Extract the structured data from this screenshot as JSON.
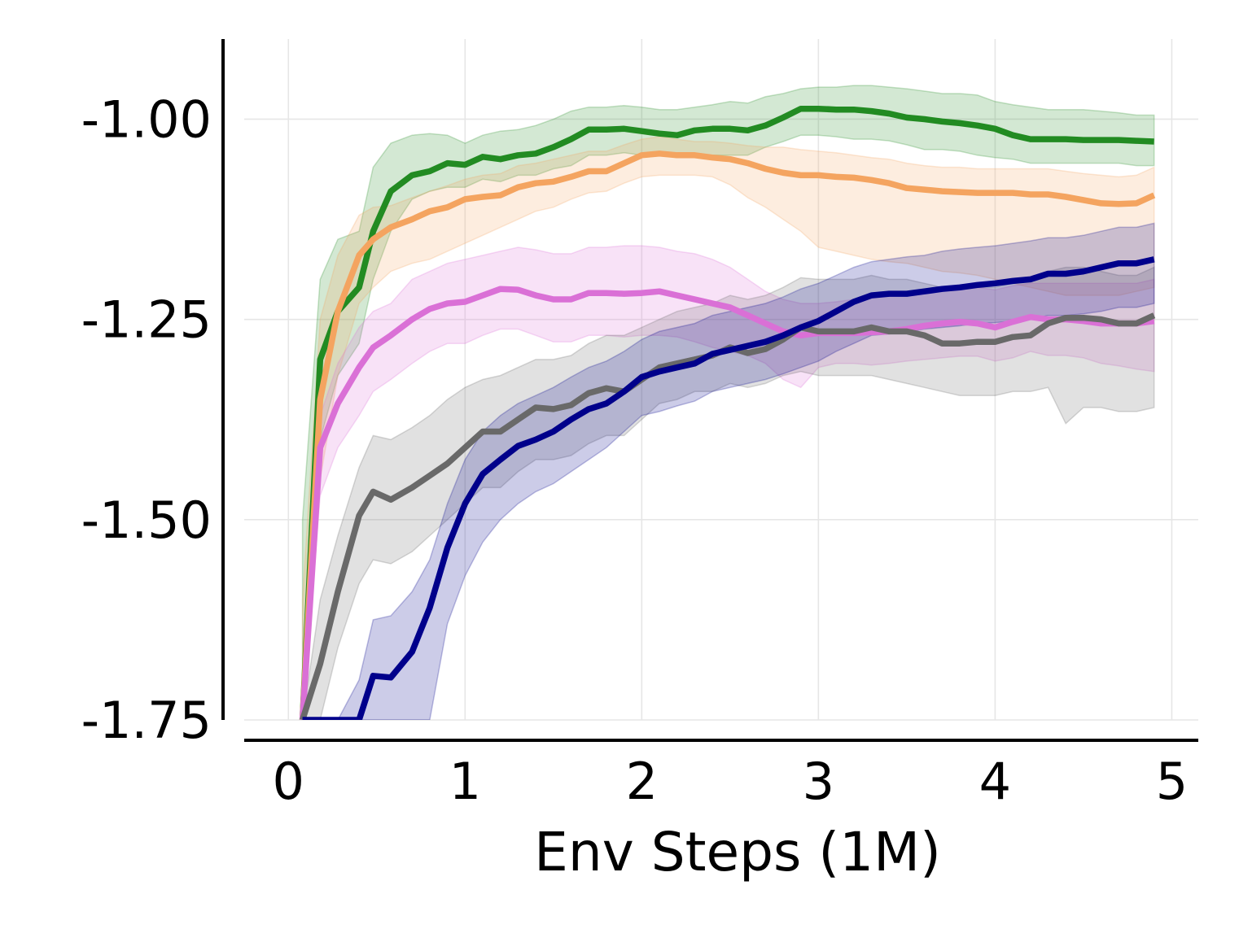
{
  "chart_data": {
    "type": "line",
    "title": "",
    "xlabel": "Env Steps (1M)",
    "ylabel": "",
    "xlim": [
      -0.25,
      5.15
    ],
    "ylim": [
      -1.75,
      -0.9
    ],
    "xticks": [
      0,
      1,
      2,
      3,
      4,
      5
    ],
    "xtick_labels": [
      "0",
      "1",
      "2",
      "3",
      "4",
      "5"
    ],
    "yticks": [
      -1.75,
      -1.5,
      -1.25,
      -1.0
    ],
    "ytick_labels": [
      "-1.75",
      "-1.50",
      "-1.25",
      "-1.00"
    ],
    "grid": true,
    "legend": "none",
    "x": [
      0.08,
      0.18,
      0.28,
      0.4,
      0.48,
      0.58,
      0.7,
      0.8,
      0.9,
      1.0,
      1.1,
      1.2,
      1.3,
      1.4,
      1.5,
      1.6,
      1.7,
      1.8,
      1.9,
      2.0,
      2.1,
      2.2,
      2.3,
      2.4,
      2.5,
      2.6,
      2.7,
      2.8,
      2.9,
      3.0,
      3.1,
      3.2,
      3.3,
      3.4,
      3.5,
      3.6,
      3.7,
      3.8,
      3.9,
      4.0,
      4.1,
      4.2,
      4.3,
      4.4,
      4.5,
      4.6,
      4.7,
      4.8,
      4.9
    ],
    "series": [
      {
        "name": "green",
        "color": "#228b22",
        "values": [
          -1.75,
          -1.3,
          -1.24,
          -1.21,
          -1.14,
          -1.09,
          -1.07,
          -1.065,
          -1.055,
          -1.057,
          -1.047,
          -1.05,
          -1.045,
          -1.043,
          -1.035,
          -1.025,
          -1.013,
          -1.013,
          -1.012,
          -1.015,
          -1.018,
          -1.02,
          -1.014,
          -1.012,
          -1.012,
          -1.014,
          -1.008,
          -0.998,
          -0.987,
          -0.987,
          -0.988,
          -0.988,
          -0.99,
          -0.993,
          -0.998,
          -1.0,
          -1.003,
          -1.005,
          -1.008,
          -1.012,
          -1.02,
          -1.025,
          -1.025,
          -1.025,
          -1.026,
          -1.026,
          -1.026,
          -1.027,
          -1.028
        ],
        "upper": [
          -1.5,
          -1.2,
          -1.15,
          -1.14,
          -1.06,
          -1.03,
          -1.02,
          -1.018,
          -1.02,
          -1.03,
          -1.02,
          -1.015,
          -1.013,
          -1.008,
          -1.0,
          -0.99,
          -0.985,
          -0.985,
          -0.983,
          -0.985,
          -0.988,
          -0.988,
          -0.985,
          -0.982,
          -0.978,
          -0.98,
          -0.972,
          -0.968,
          -0.962,
          -0.96,
          -0.96,
          -0.958,
          -0.958,
          -0.96,
          -0.962,
          -0.965,
          -0.968,
          -0.968,
          -0.97,
          -0.978,
          -0.982,
          -0.985,
          -0.988,
          -0.988,
          -0.988,
          -0.99,
          -0.992,
          -0.995,
          -0.995
        ],
        "lower": [
          -1.75,
          -1.4,
          -1.32,
          -1.28,
          -1.2,
          -1.14,
          -1.1,
          -1.09,
          -1.085,
          -1.085,
          -1.075,
          -1.078,
          -1.07,
          -1.07,
          -1.062,
          -1.058,
          -1.045,
          -1.045,
          -1.042,
          -1.045,
          -1.045,
          -1.048,
          -1.045,
          -1.045,
          -1.045,
          -1.045,
          -1.035,
          -1.028,
          -1.02,
          -1.02,
          -1.022,
          -1.025,
          -1.025,
          -1.027,
          -1.032,
          -1.038,
          -1.038,
          -1.04,
          -1.045,
          -1.048,
          -1.05,
          -1.055,
          -1.055,
          -1.055,
          -1.055,
          -1.055,
          -1.055,
          -1.058,
          -1.058
        ]
      },
      {
        "name": "orange",
        "color": "#f4a460",
        "values": [
          -1.75,
          -1.35,
          -1.24,
          -1.17,
          -1.15,
          -1.135,
          -1.125,
          -1.115,
          -1.11,
          -1.1,
          -1.097,
          -1.095,
          -1.085,
          -1.08,
          -1.078,
          -1.072,
          -1.065,
          -1.065,
          -1.055,
          -1.045,
          -1.043,
          -1.045,
          -1.045,
          -1.048,
          -1.05,
          -1.055,
          -1.062,
          -1.067,
          -1.07,
          -1.07,
          -1.072,
          -1.073,
          -1.076,
          -1.08,
          -1.086,
          -1.088,
          -1.09,
          -1.091,
          -1.092,
          -1.092,
          -1.092,
          -1.094,
          -1.094,
          -1.097,
          -1.101,
          -1.105,
          -1.106,
          -1.105,
          -1.095
        ],
        "upper": [
          -1.6,
          -1.25,
          -1.17,
          -1.12,
          -1.11,
          -1.108,
          -1.098,
          -1.09,
          -1.083,
          -1.075,
          -1.07,
          -1.068,
          -1.058,
          -1.055,
          -1.05,
          -1.045,
          -1.04,
          -1.04,
          -1.032,
          -1.025,
          -1.022,
          -1.025,
          -1.028,
          -1.028,
          -1.03,
          -1.033,
          -1.035,
          -1.035,
          -1.038,
          -1.04,
          -1.042,
          -1.045,
          -1.048,
          -1.05,
          -1.055,
          -1.058,
          -1.06,
          -1.06,
          -1.062,
          -1.062,
          -1.062,
          -1.062,
          -1.062,
          -1.065,
          -1.068,
          -1.07,
          -1.072,
          -1.07,
          -1.06
        ],
        "lower": [
          -1.75,
          -1.45,
          -1.32,
          -1.23,
          -1.21,
          -1.19,
          -1.18,
          -1.175,
          -1.165,
          -1.155,
          -1.145,
          -1.135,
          -1.125,
          -1.115,
          -1.11,
          -1.1,
          -1.092,
          -1.09,
          -1.08,
          -1.072,
          -1.07,
          -1.07,
          -1.07,
          -1.072,
          -1.082,
          -1.098,
          -1.11,
          -1.125,
          -1.14,
          -1.16,
          -1.165,
          -1.17,
          -1.175,
          -1.178,
          -1.18,
          -1.185,
          -1.19,
          -1.192,
          -1.195,
          -1.2,
          -1.205,
          -1.21,
          -1.215,
          -1.22,
          -1.22,
          -1.22,
          -1.22,
          -1.215,
          -1.21
        ]
      },
      {
        "name": "pink",
        "color": "#da70d6",
        "values": [
          -1.75,
          -1.41,
          -1.355,
          -1.31,
          -1.285,
          -1.27,
          -1.25,
          -1.237,
          -1.23,
          -1.228,
          -1.22,
          -1.212,
          -1.213,
          -1.22,
          -1.225,
          -1.225,
          -1.217,
          -1.217,
          -1.218,
          -1.217,
          -1.215,
          -1.22,
          -1.225,
          -1.23,
          -1.235,
          -1.245,
          -1.255,
          -1.265,
          -1.27,
          -1.267,
          -1.267,
          -1.267,
          -1.266,
          -1.265,
          -1.262,
          -1.258,
          -1.255,
          -1.253,
          -1.255,
          -1.26,
          -1.253,
          -1.247,
          -1.25,
          -1.25,
          -1.252,
          -1.255,
          -1.255,
          -1.255,
          -1.252
        ],
        "upper": [
          -1.7,
          -1.37,
          -1.305,
          -1.26,
          -1.24,
          -1.23,
          -1.2,
          -1.19,
          -1.18,
          -1.175,
          -1.17,
          -1.165,
          -1.16,
          -1.163,
          -1.168,
          -1.168,
          -1.16,
          -1.16,
          -1.158,
          -1.158,
          -1.16,
          -1.165,
          -1.168,
          -1.175,
          -1.185,
          -1.2,
          -1.215,
          -1.225,
          -1.23,
          -1.23,
          -1.228,
          -1.225,
          -1.223,
          -1.22,
          -1.218,
          -1.215,
          -1.21,
          -1.21,
          -1.21,
          -1.213,
          -1.208,
          -1.205,
          -1.205,
          -1.205,
          -1.205,
          -1.205,
          -1.205,
          -1.205,
          -1.2
        ],
        "lower": [
          -1.75,
          -1.47,
          -1.41,
          -1.37,
          -1.34,
          -1.325,
          -1.305,
          -1.29,
          -1.28,
          -1.28,
          -1.27,
          -1.262,
          -1.262,
          -1.27,
          -1.278,
          -1.278,
          -1.27,
          -1.27,
          -1.272,
          -1.27,
          -1.27,
          -1.272,
          -1.278,
          -1.285,
          -1.29,
          -1.295,
          -1.305,
          -1.325,
          -1.335,
          -1.31,
          -1.305,
          -1.305,
          -1.307,
          -1.305,
          -1.302,
          -1.3,
          -1.298,
          -1.296,
          -1.296,
          -1.302,
          -1.298,
          -1.29,
          -1.295,
          -1.295,
          -1.298,
          -1.305,
          -1.308,
          -1.312,
          -1.315
        ]
      },
      {
        "name": "gray",
        "color": "#696969",
        "values": [
          -1.75,
          -1.68,
          -1.59,
          -1.495,
          -1.465,
          -1.475,
          -1.46,
          -1.445,
          -1.43,
          -1.41,
          -1.39,
          -1.39,
          -1.375,
          -1.36,
          -1.362,
          -1.357,
          -1.342,
          -1.336,
          -1.34,
          -1.325,
          -1.31,
          -1.305,
          -1.3,
          -1.295,
          -1.285,
          -1.292,
          -1.287,
          -1.275,
          -1.26,
          -1.265,
          -1.265,
          -1.265,
          -1.26,
          -1.265,
          -1.265,
          -1.27,
          -1.28,
          -1.28,
          -1.278,
          -1.278,
          -1.272,
          -1.27,
          -1.255,
          -1.248,
          -1.248,
          -1.25,
          -1.255,
          -1.255,
          -1.245
        ],
        "upper": [
          -1.75,
          -1.6,
          -1.52,
          -1.435,
          -1.395,
          -1.4,
          -1.385,
          -1.37,
          -1.35,
          -1.335,
          -1.325,
          -1.32,
          -1.31,
          -1.3,
          -1.3,
          -1.295,
          -1.28,
          -1.27,
          -1.27,
          -1.26,
          -1.25,
          -1.24,
          -1.235,
          -1.23,
          -1.22,
          -1.225,
          -1.22,
          -1.21,
          -1.198,
          -1.2,
          -1.2,
          -1.2,
          -1.195,
          -1.2,
          -1.2,
          -1.205,
          -1.21,
          -1.21,
          -1.21,
          -1.21,
          -1.205,
          -1.2,
          -1.19,
          -1.185,
          -1.185,
          -1.19,
          -1.195,
          -1.195,
          -1.185
        ],
        "lower": [
          -1.75,
          -1.75,
          -1.66,
          -1.58,
          -1.55,
          -1.555,
          -1.54,
          -1.52,
          -1.5,
          -1.48,
          -1.46,
          -1.46,
          -1.44,
          -1.425,
          -1.425,
          -1.42,
          -1.405,
          -1.395,
          -1.395,
          -1.375,
          -1.355,
          -1.35,
          -1.34,
          -1.34,
          -1.33,
          -1.335,
          -1.33,
          -1.32,
          -1.315,
          -1.32,
          -1.32,
          -1.32,
          -1.32,
          -1.325,
          -1.33,
          -1.335,
          -1.34,
          -1.345,
          -1.345,
          -1.345,
          -1.34,
          -1.34,
          -1.335,
          -1.38,
          -1.36,
          -1.36,
          -1.365,
          -1.365,
          -1.36
        ]
      },
      {
        "name": "navy",
        "color": "#00008b",
        "values": [
          -1.75,
          -1.75,
          -1.75,
          -1.75,
          -1.695,
          -1.697,
          -1.665,
          -1.61,
          -1.535,
          -1.48,
          -1.443,
          -1.425,
          -1.408,
          -1.4,
          -1.39,
          -1.375,
          -1.362,
          -1.355,
          -1.34,
          -1.322,
          -1.315,
          -1.31,
          -1.305,
          -1.293,
          -1.288,
          -1.283,
          -1.278,
          -1.27,
          -1.26,
          -1.252,
          -1.24,
          -1.228,
          -1.22,
          -1.218,
          -1.218,
          -1.215,
          -1.212,
          -1.21,
          -1.207,
          -1.205,
          -1.202,
          -1.2,
          -1.193,
          -1.193,
          -1.19,
          -1.185,
          -1.18,
          -1.18,
          -1.175
        ],
        "upper": [
          -1.75,
          -1.75,
          -1.75,
          -1.7,
          -1.625,
          -1.62,
          -1.59,
          -1.55,
          -1.48,
          -1.425,
          -1.39,
          -1.37,
          -1.355,
          -1.345,
          -1.335,
          -1.322,
          -1.31,
          -1.302,
          -1.29,
          -1.275,
          -1.265,
          -1.26,
          -1.255,
          -1.245,
          -1.24,
          -1.235,
          -1.23,
          -1.222,
          -1.212,
          -1.205,
          -1.195,
          -1.185,
          -1.178,
          -1.175,
          -1.172,
          -1.17,
          -1.165,
          -1.162,
          -1.16,
          -1.158,
          -1.155,
          -1.152,
          -1.148,
          -1.148,
          -1.145,
          -1.14,
          -1.135,
          -1.135,
          -1.13
        ],
        "lower": [
          -1.75,
          -1.75,
          -1.75,
          -1.75,
          -1.75,
          -1.75,
          -1.75,
          -1.75,
          -1.63,
          -1.57,
          -1.528,
          -1.5,
          -1.48,
          -1.465,
          -1.455,
          -1.44,
          -1.425,
          -1.41,
          -1.39,
          -1.37,
          -1.365,
          -1.358,
          -1.352,
          -1.34,
          -1.335,
          -1.33,
          -1.325,
          -1.318,
          -1.31,
          -1.302,
          -1.29,
          -1.28,
          -1.27,
          -1.268,
          -1.266,
          -1.262,
          -1.26,
          -1.258,
          -1.255,
          -1.254,
          -1.252,
          -1.25,
          -1.245,
          -1.245,
          -1.243,
          -1.24,
          -1.235,
          -1.235,
          -1.23
        ]
      }
    ]
  }
}
